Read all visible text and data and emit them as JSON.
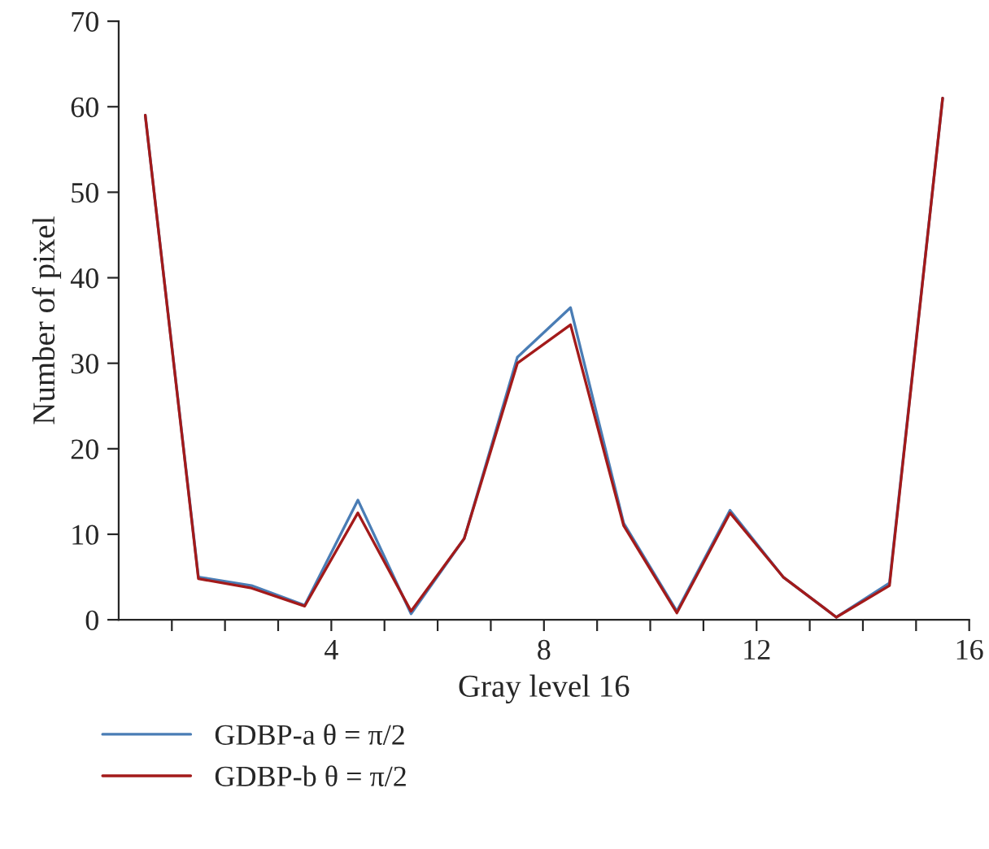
{
  "chart_data": {
    "type": "line",
    "xlabel": "Gray level 16",
    "ylabel": "Number of pixel",
    "x": [
      0.5,
      1.5,
      2.5,
      3.5,
      4.5,
      5.5,
      6.5,
      7.5,
      8.5,
      9.5,
      10.5,
      11.5,
      12.5,
      13.5,
      14.5,
      15.5
    ],
    "series": [
      {
        "name": "GDBP-a θ = π/2",
        "color": "#4a7db5",
        "values": [
          59,
          5,
          4,
          1.7,
          14,
          0.7,
          9.5,
          30.7,
          36.5,
          11.3,
          1,
          12.8,
          5,
          0.3,
          4.3,
          61
        ]
      },
      {
        "name": "GDBP-b θ = π/2",
        "color": "#a31a1a",
        "values": [
          59,
          4.8,
          3.7,
          1.6,
          12.5,
          1,
          9.5,
          30,
          34.5,
          11,
          0.8,
          12.5,
          5,
          0.3,
          4,
          61
        ]
      }
    ],
    "xlim": [
      0,
      16
    ],
    "xticks": [
      {
        "value": 1,
        "label": null
      },
      {
        "value": 2,
        "label": null
      },
      {
        "value": 3,
        "label": null
      },
      4,
      {
        "value": 5,
        "label": null
      },
      {
        "value": 6,
        "label": null
      },
      {
        "value": 7,
        "label": null
      },
      8,
      {
        "value": 9,
        "label": null
      },
      {
        "value": 10,
        "label": null
      },
      {
        "value": 11,
        "label": null
      },
      12,
      {
        "value": 13,
        "label": null
      },
      {
        "value": 14,
        "label": null
      },
      {
        "value": 15,
        "label": null
      },
      16
    ],
    "ylim": [
      0,
      70
    ],
    "yticks": [
      0,
      10,
      20,
      30,
      40,
      50,
      60,
      70
    ],
    "grid": false,
    "legend": "bottom",
    "marker": "none",
    "line_style": "solid"
  }
}
